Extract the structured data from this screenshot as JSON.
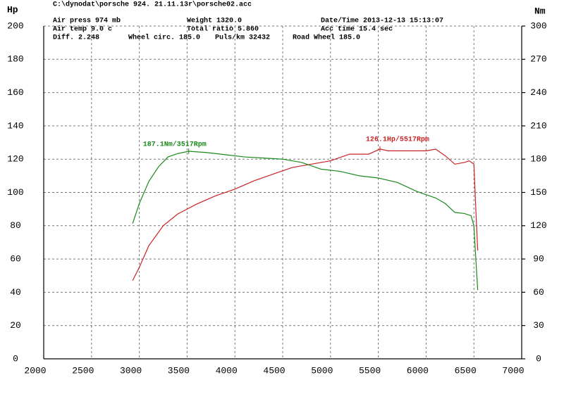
{
  "chart_data": {
    "type": "line",
    "header": [
      "C:\\dynodat\\porsche 924. 21.11.13r\\porsche02.acc",
      "Air press    974 mb",
      "Weight    1320.0",
      "Date/Time  2013-12-13 15:13:07",
      "Air temp     9.0 c",
      "Total ratio 5.860",
      "Acc time   15.4 sec",
      "Diff.     2.248",
      "Wheel circ. 185.0",
      "Puls/km   32432",
      "Road Wheel 185.0"
    ],
    "y_label": "Hp",
    "y2_label": "Nm",
    "annotations": [
      "187.1Nm/3517Rpm",
      "126.1Hp/5517Rpm"
    ],
    "xlim": [
      2000,
      7000
    ],
    "xticks": [
      2000,
      2500,
      3000,
      3500,
      4000,
      4500,
      5000,
      5500,
      6000,
      6500,
      7000
    ],
    "ylim": [
      0,
      200
    ],
    "yticks": [
      0,
      20,
      40,
      60,
      80,
      100,
      120,
      140,
      160,
      180,
      200
    ],
    "y2lim": [
      0,
      300
    ],
    "y2ticks": [
      0,
      30,
      60,
      90,
      120,
      150,
      180,
      210,
      240,
      270,
      300
    ],
    "grid": true,
    "series": [
      {
        "name": "Hp",
        "color": "#cc2222",
        "x": [
          2930,
          3000,
          3100,
          3250,
          3400,
          3600,
          3800,
          4000,
          4200,
          4400,
          4600,
          4800,
          5000,
          5100,
          5200,
          5400,
          5517,
          5600,
          5800,
          6000,
          6100,
          6200,
          6300,
          6400,
          6450,
          6500,
          6520,
          6540
        ],
        "values": [
          47,
          55,
          68,
          80,
          87,
          93,
          98,
          102,
          107,
          111,
          115,
          117,
          119,
          121,
          123,
          123,
          126.1,
          125,
          125,
          125,
          126,
          122,
          117,
          118,
          119,
          117,
          90,
          65
        ]
      },
      {
        "name": "Nm",
        "color": "#1a8a1a",
        "axis": "y2",
        "x": [
          2930,
          3000,
          3100,
          3200,
          3300,
          3400,
          3517,
          3700,
          3900,
          4100,
          4300,
          4500,
          4700,
          4900,
          5100,
          5300,
          5500,
          5700,
          5900,
          6100,
          6200,
          6300,
          6400,
          6470,
          6500,
          6520,
          6540
        ],
        "values": [
          122,
          140,
          160,
          173,
          182,
          185,
          187.1,
          186,
          184,
          182,
          181,
          180,
          177,
          171,
          169,
          165,
          163,
          159,
          151,
          145,
          140,
          132,
          131,
          129,
          120,
          90,
          62
        ]
      }
    ]
  }
}
